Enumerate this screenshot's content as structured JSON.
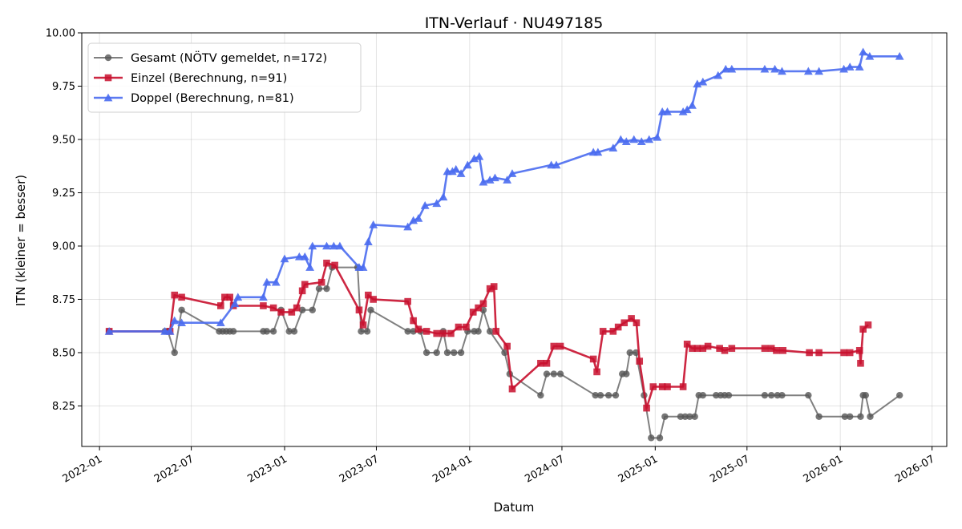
{
  "chart_data": {
    "type": "line",
    "title": "ITN-Verlauf · NU497185",
    "xlabel": "Datum",
    "ylabel": "ITN  (kleiner = besser)",
    "xlim": [
      "2021-11-27",
      "2026-07-30"
    ],
    "ylim": [
      8.06,
      10.0
    ],
    "x_ticks": [
      "2022-01",
      "2022-07",
      "2023-01",
      "2023-07",
      "2024-01",
      "2024-07",
      "2025-01",
      "2025-07",
      "2026-01",
      "2026-07"
    ],
    "y_ticks": [
      "8.25",
      "8.50",
      "8.75",
      "9.00",
      "9.25",
      "9.50",
      "9.75",
      "10.00"
    ],
    "grid": true,
    "legend_position": "top-left",
    "series": [
      {
        "name": "Gesamt (NÖTV gemeldet, n=172)",
        "color": "#555555",
        "marker": "circle",
        "points": [
          [
            "2022-01-20",
            8.6
          ],
          [
            "2022-05-10",
            8.6
          ],
          [
            "2022-05-16",
            8.6
          ],
          [
            "2022-05-29",
            8.5
          ],
          [
            "2022-06-12",
            8.7
          ],
          [
            "2022-08-25",
            8.6
          ],
          [
            "2022-09-01",
            8.6
          ],
          [
            "2022-09-08",
            8.6
          ],
          [
            "2022-09-15",
            8.6
          ],
          [
            "2022-09-22",
            8.6
          ],
          [
            "2022-11-20",
            8.6
          ],
          [
            "2022-11-27",
            8.6
          ],
          [
            "2022-12-10",
            8.6
          ],
          [
            "2022-12-25",
            8.7
          ],
          [
            "2023-01-10",
            8.6
          ],
          [
            "2023-01-20",
            8.6
          ],
          [
            "2023-02-05",
            8.7
          ],
          [
            "2023-02-25",
            8.7
          ],
          [
            "2023-03-10",
            8.8
          ],
          [
            "2023-03-25",
            8.8
          ],
          [
            "2023-04-05",
            8.9
          ],
          [
            "2023-05-25",
            8.9
          ],
          [
            "2023-06-01",
            8.6
          ],
          [
            "2023-06-13",
            8.6
          ],
          [
            "2023-06-20",
            8.7
          ],
          [
            "2023-09-01",
            8.6
          ],
          [
            "2023-09-12",
            8.6
          ],
          [
            "2023-09-26",
            8.6
          ],
          [
            "2023-10-08",
            8.5
          ],
          [
            "2023-10-28",
            8.5
          ],
          [
            "2023-11-10",
            8.6
          ],
          [
            "2023-11-18",
            8.5
          ],
          [
            "2023-12-01",
            8.5
          ],
          [
            "2023-12-15",
            8.5
          ],
          [
            "2023-12-28",
            8.6
          ],
          [
            "2024-01-10",
            8.6
          ],
          [
            "2024-01-18",
            8.6
          ],
          [
            "2024-01-28",
            8.7
          ],
          [
            "2024-02-10",
            8.6
          ],
          [
            "2024-03-10",
            8.5
          ],
          [
            "2024-03-20",
            8.4
          ],
          [
            "2024-05-20",
            8.3
          ],
          [
            "2024-06-01",
            8.4
          ],
          [
            "2024-06-15",
            8.4
          ],
          [
            "2024-06-28",
            8.4
          ],
          [
            "2024-09-05",
            8.3
          ],
          [
            "2024-09-15",
            8.3
          ],
          [
            "2024-10-01",
            8.3
          ],
          [
            "2024-10-15",
            8.3
          ],
          [
            "2024-10-28",
            8.4
          ],
          [
            "2024-11-05",
            8.4
          ],
          [
            "2024-11-12",
            8.5
          ],
          [
            "2024-11-24",
            8.5
          ],
          [
            "2024-12-10",
            8.3
          ],
          [
            "2024-12-24",
            8.1
          ],
          [
            "2025-01-10",
            8.1
          ],
          [
            "2025-01-20",
            8.2
          ],
          [
            "2025-02-20",
            8.2
          ],
          [
            "2025-03-01",
            8.2
          ],
          [
            "2025-03-10",
            8.2
          ],
          [
            "2025-03-20",
            8.2
          ],
          [
            "2025-03-28",
            8.3
          ],
          [
            "2025-04-05",
            8.3
          ],
          [
            "2025-05-01",
            8.3
          ],
          [
            "2025-05-10",
            8.3
          ],
          [
            "2025-05-18",
            8.3
          ],
          [
            "2025-05-26",
            8.3
          ],
          [
            "2025-08-05",
            8.3
          ],
          [
            "2025-08-18",
            8.3
          ],
          [
            "2025-08-30",
            8.3
          ],
          [
            "2025-09-08",
            8.3
          ],
          [
            "2025-10-30",
            8.3
          ],
          [
            "2025-11-20",
            8.2
          ],
          [
            "2026-01-10",
            8.2
          ],
          [
            "2026-01-20",
            8.2
          ],
          [
            "2026-02-10",
            8.2
          ],
          [
            "2026-02-15",
            8.3
          ],
          [
            "2026-02-20",
            8.3
          ],
          [
            "2026-03-01",
            8.2
          ],
          [
            "2026-04-28",
            8.3
          ]
        ]
      },
      {
        "name": "Einzel (Berechnung, n=91)",
        "color": "#c8102e",
        "marker": "square",
        "points": [
          [
            "2022-01-20",
            8.6
          ],
          [
            "2022-05-20",
            8.6
          ],
          [
            "2022-05-29",
            8.77
          ],
          [
            "2022-06-12",
            8.76
          ],
          [
            "2022-08-28",
            8.72
          ],
          [
            "2022-09-05",
            8.76
          ],
          [
            "2022-09-15",
            8.76
          ],
          [
            "2022-09-22",
            8.72
          ],
          [
            "2022-11-20",
            8.72
          ],
          [
            "2022-12-10",
            8.71
          ],
          [
            "2022-12-25",
            8.69
          ],
          [
            "2023-01-15",
            8.69
          ],
          [
            "2023-01-25",
            8.71
          ],
          [
            "2023-02-05",
            8.79
          ],
          [
            "2023-02-10",
            8.82
          ],
          [
            "2023-03-15",
            8.83
          ],
          [
            "2023-03-25",
            8.92
          ],
          [
            "2023-04-10",
            8.91
          ],
          [
            "2023-05-28",
            8.7
          ],
          [
            "2023-06-05",
            8.63
          ],
          [
            "2023-06-15",
            8.77
          ],
          [
            "2023-06-25",
            8.75
          ],
          [
            "2023-09-01",
            8.74
          ],
          [
            "2023-09-12",
            8.65
          ],
          [
            "2023-09-22",
            8.61
          ],
          [
            "2023-10-08",
            8.6
          ],
          [
            "2023-10-28",
            8.59
          ],
          [
            "2023-11-10",
            8.59
          ],
          [
            "2023-11-25",
            8.59
          ],
          [
            "2023-12-10",
            8.62
          ],
          [
            "2023-12-25",
            8.62
          ],
          [
            "2024-01-08",
            8.69
          ],
          [
            "2024-01-18",
            8.71
          ],
          [
            "2024-01-28",
            8.73
          ],
          [
            "2024-02-10",
            8.8
          ],
          [
            "2024-02-18",
            8.81
          ],
          [
            "2024-02-22",
            8.6
          ],
          [
            "2024-03-15",
            8.53
          ],
          [
            "2024-03-25",
            8.33
          ],
          [
            "2024-05-20",
            8.45
          ],
          [
            "2024-06-01",
            8.45
          ],
          [
            "2024-06-15",
            8.53
          ],
          [
            "2024-06-28",
            8.53
          ],
          [
            "2024-09-01",
            8.47
          ],
          [
            "2024-09-08",
            8.41
          ],
          [
            "2024-09-20",
            8.6
          ],
          [
            "2024-10-10",
            8.6
          ],
          [
            "2024-10-20",
            8.62
          ],
          [
            "2024-11-01",
            8.64
          ],
          [
            "2024-11-15",
            8.66
          ],
          [
            "2024-11-25",
            8.64
          ],
          [
            "2024-12-01",
            8.46
          ],
          [
            "2024-12-15",
            8.24
          ],
          [
            "2024-12-28",
            8.34
          ],
          [
            "2025-01-15",
            8.34
          ],
          [
            "2025-01-25",
            8.34
          ],
          [
            "2025-02-25",
            8.34
          ],
          [
            "2025-03-05",
            8.54
          ],
          [
            "2025-03-15",
            8.52
          ],
          [
            "2025-03-25",
            8.52
          ],
          [
            "2025-04-05",
            8.52
          ],
          [
            "2025-04-15",
            8.53
          ],
          [
            "2025-05-08",
            8.52
          ],
          [
            "2025-05-18",
            8.51
          ],
          [
            "2025-06-01",
            8.52
          ],
          [
            "2025-08-05",
            8.52
          ],
          [
            "2025-08-18",
            8.52
          ],
          [
            "2025-08-28",
            8.51
          ],
          [
            "2025-09-10",
            8.51
          ],
          [
            "2025-11-01",
            8.5
          ],
          [
            "2025-11-20",
            8.5
          ],
          [
            "2026-01-08",
            8.5
          ],
          [
            "2026-01-20",
            8.5
          ],
          [
            "2026-02-08",
            8.51
          ],
          [
            "2026-02-10",
            8.45
          ],
          [
            "2026-02-15",
            8.61
          ],
          [
            "2026-02-25",
            8.63
          ]
        ]
      },
      {
        "name": "Doppel (Berechnung, n=81)",
        "color": "#4a6cf0",
        "marker": "triangle",
        "points": [
          [
            "2022-01-20",
            8.6
          ],
          [
            "2022-05-10",
            8.6
          ],
          [
            "2022-05-20",
            8.6
          ],
          [
            "2022-05-29",
            8.65
          ],
          [
            "2022-06-12",
            8.64
          ],
          [
            "2022-08-28",
            8.64
          ],
          [
            "2022-09-25",
            8.73
          ],
          [
            "2022-10-01",
            8.76
          ],
          [
            "2022-11-20",
            8.76
          ],
          [
            "2022-11-27",
            8.83
          ],
          [
            "2022-12-15",
            8.83
          ],
          [
            "2023-01-01",
            8.94
          ],
          [
            "2023-01-30",
            8.95
          ],
          [
            "2023-02-10",
            8.95
          ],
          [
            "2023-02-20",
            8.9
          ],
          [
            "2023-02-25",
            9.0
          ],
          [
            "2023-03-25",
            9.0
          ],
          [
            "2023-04-08",
            9.0
          ],
          [
            "2023-04-20",
            9.0
          ],
          [
            "2023-05-28",
            8.9
          ],
          [
            "2023-06-05",
            8.9
          ],
          [
            "2023-06-15",
            9.02
          ],
          [
            "2023-06-25",
            9.1
          ],
          [
            "2023-09-01",
            9.09
          ],
          [
            "2023-09-12",
            9.12
          ],
          [
            "2023-09-22",
            9.13
          ],
          [
            "2023-10-05",
            9.19
          ],
          [
            "2023-10-28",
            9.2
          ],
          [
            "2023-11-10",
            9.23
          ],
          [
            "2023-11-18",
            9.35
          ],
          [
            "2023-11-28",
            9.35
          ],
          [
            "2023-12-05",
            9.36
          ],
          [
            "2023-12-15",
            9.34
          ],
          [
            "2023-12-28",
            9.38
          ],
          [
            "2024-01-10",
            9.41
          ],
          [
            "2024-01-20",
            9.42
          ],
          [
            "2024-01-28",
            9.3
          ],
          [
            "2024-02-10",
            9.31
          ],
          [
            "2024-02-20",
            9.32
          ],
          [
            "2024-03-15",
            9.31
          ],
          [
            "2024-03-25",
            9.34
          ],
          [
            "2024-06-10",
            9.38
          ],
          [
            "2024-06-20",
            9.38
          ],
          [
            "2024-09-01",
            9.44
          ],
          [
            "2024-09-10",
            9.44
          ],
          [
            "2024-10-10",
            9.46
          ],
          [
            "2024-10-25",
            9.5
          ],
          [
            "2024-11-05",
            9.49
          ],
          [
            "2024-11-20",
            9.5
          ],
          [
            "2024-12-05",
            9.49
          ],
          [
            "2024-12-20",
            9.5
          ],
          [
            "2025-01-05",
            9.51
          ],
          [
            "2025-01-15",
            9.63
          ],
          [
            "2025-01-25",
            9.63
          ],
          [
            "2025-02-25",
            9.63
          ],
          [
            "2025-03-05",
            9.64
          ],
          [
            "2025-03-15",
            9.66
          ],
          [
            "2025-03-25",
            9.76
          ],
          [
            "2025-04-05",
            9.77
          ],
          [
            "2025-05-05",
            9.8
          ],
          [
            "2025-05-20",
            9.83
          ],
          [
            "2025-06-01",
            9.83
          ],
          [
            "2025-08-05",
            9.83
          ],
          [
            "2025-08-25",
            9.83
          ],
          [
            "2025-09-08",
            9.82
          ],
          [
            "2025-10-30",
            9.82
          ],
          [
            "2025-11-20",
            9.82
          ],
          [
            "2026-01-08",
            9.83
          ],
          [
            "2026-01-20",
            9.84
          ],
          [
            "2026-02-08",
            9.84
          ],
          [
            "2026-02-15",
            9.91
          ],
          [
            "2026-02-28",
            9.89
          ],
          [
            "2026-04-28",
            9.89
          ]
        ]
      }
    ]
  }
}
